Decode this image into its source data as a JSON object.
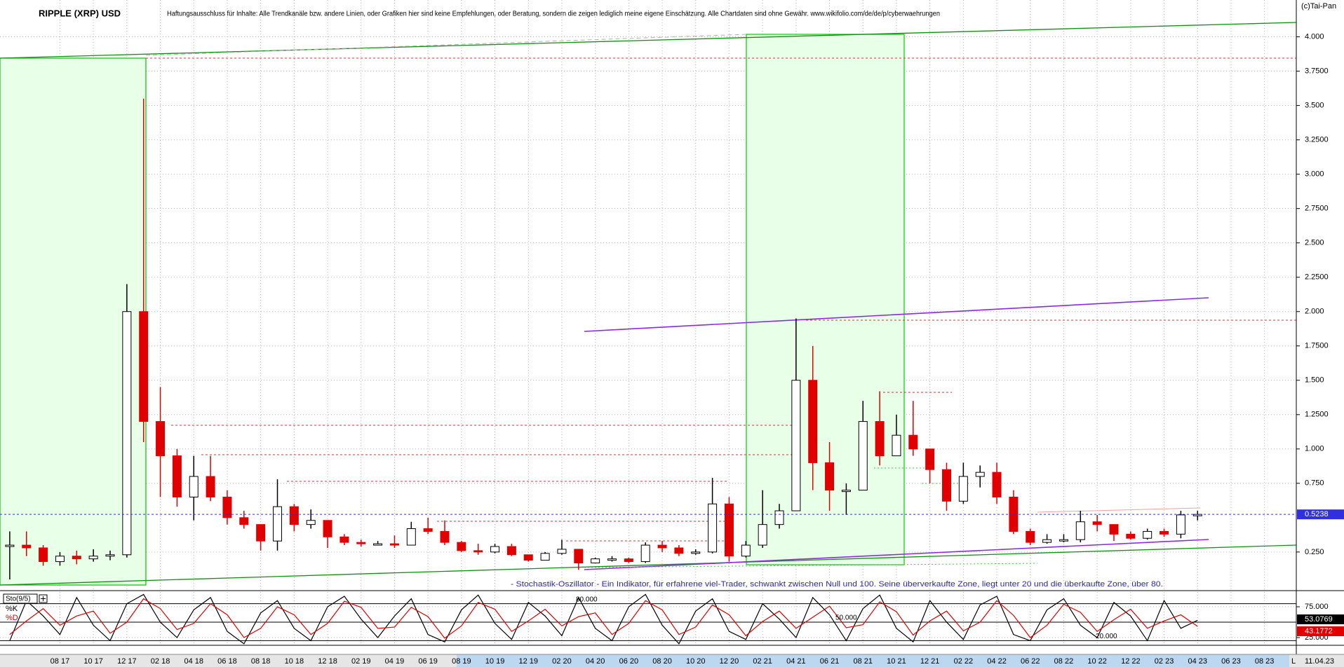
{
  "chart_data": [
    {
      "type": "candlestick",
      "title": "RIPPLE (XRP) USD",
      "subtitle": "Haftungsausschluss für Inhalte: Alle Trendkanäle bzw. andere Linien, oder Grafiken hier sind keine Empfehlungen, oder Beratung, sondern die zeigen lediglich meine eigene Einschätzung. Alle Chartdaten sind ohne Gewähr. www.wikifolio.com/de/de/p/cyberwaehrungen",
      "source": "(c)Tai-Pan",
      "date": "11.04.23",
      "scale_mode": "L",
      "categories": [
        null,
        null,
        null,
        "08 17",
        null,
        "10 17",
        null,
        "12 17",
        null,
        "02 18",
        null,
        "04 18",
        null,
        "06 18",
        null,
        "08 18",
        null,
        "10 18",
        null,
        "12 18",
        null,
        "02 19",
        null,
        "04 19",
        null,
        "06 19",
        null,
        "08 19",
        null,
        "10 19",
        null,
        "12 19",
        null,
        "02 20",
        null,
        "04 20",
        null,
        "06 20",
        null,
        "08 20",
        null,
        "10 20",
        null,
        "12 20",
        null,
        "02 21",
        null,
        "04 21",
        null,
        "06 21",
        null,
        "08 21",
        null,
        "10 21",
        null,
        "12 21",
        null,
        "02 22",
        null,
        "04 22",
        null,
        "06 22",
        null,
        "08 22",
        null,
        "10 22",
        null,
        "12 22",
        null,
        "02 23",
        null,
        "04 23",
        null,
        "06 23",
        null,
        "08 23",
        null,
        null
      ],
      "high": [
        0.4,
        0.4,
        0.3,
        0.25,
        0.26,
        0.27,
        0.26,
        2.2,
        3.55,
        1.45,
        1.0,
        0.95,
        0.95,
        0.7,
        0.55,
        0.45,
        0.78,
        0.6,
        0.56,
        0.48,
        0.38,
        0.34,
        0.33,
        0.37,
        0.47,
        0.5,
        0.48,
        0.33,
        0.31,
        0.31,
        0.31,
        0.23,
        0.25,
        0.34,
        0.27,
        0.21,
        0.22,
        0.21,
        0.32,
        0.33,
        0.3,
        0.27,
        0.79,
        0.65,
        0.33,
        0.7,
        0.6,
        1.95,
        1.75,
        1.05,
        0.75,
        1.35,
        1.42,
        1.25,
        1.35,
        1.0,
        0.9,
        0.9,
        0.88,
        0.9,
        0.7,
        0.42,
        0.38,
        0.38,
        0.55,
        0.52,
        0.45,
        0.4,
        0.42,
        0.42,
        0.55,
        0.55,
        null,
        null,
        null,
        null,
        null,
        null
      ],
      "low": [
        0.05,
        0.22,
        0.15,
        0.15,
        0.16,
        0.18,
        0.19,
        0.21,
        1.05,
        0.65,
        0.58,
        0.48,
        0.62,
        0.45,
        0.42,
        0.26,
        0.26,
        0.4,
        0.42,
        0.28,
        0.3,
        0.29,
        0.3,
        0.28,
        0.3,
        0.38,
        0.3,
        0.25,
        0.23,
        0.24,
        0.22,
        0.18,
        0.19,
        0.23,
        0.12,
        0.17,
        0.18,
        0.17,
        0.17,
        0.25,
        0.22,
        0.23,
        0.24,
        0.18,
        0.21,
        0.28,
        0.42,
        0.55,
        0.7,
        0.55,
        0.52,
        0.7,
        0.88,
        0.95,
        0.95,
        0.75,
        0.55,
        0.6,
        0.72,
        0.6,
        0.38,
        0.3,
        0.31,
        0.32,
        0.32,
        0.4,
        0.33,
        0.34,
        0.34,
        0.36,
        0.35,
        0.48,
        null,
        null,
        null,
        null,
        null,
        null
      ],
      "close": [
        0.3,
        0.28,
        0.18,
        0.22,
        0.2,
        0.22,
        0.23,
        2.0,
        1.2,
        0.95,
        0.65,
        0.8,
        0.65,
        0.5,
        0.45,
        0.33,
        0.58,
        0.45,
        0.48,
        0.36,
        0.32,
        0.31,
        0.31,
        0.3,
        0.42,
        0.4,
        0.32,
        0.26,
        0.25,
        0.29,
        0.23,
        0.19,
        0.24,
        0.27,
        0.17,
        0.2,
        0.2,
        0.18,
        0.3,
        0.28,
        0.24,
        0.25,
        0.6,
        0.22,
        0.3,
        0.45,
        0.55,
        1.5,
        0.9,
        0.7,
        0.7,
        1.2,
        0.95,
        1.1,
        1.0,
        0.85,
        0.62,
        0.8,
        0.83,
        0.65,
        0.4,
        0.32,
        0.34,
        0.34,
        0.47,
        0.45,
        0.38,
        0.35,
        0.4,
        0.38,
        0.52,
        0.5238,
        null,
        null,
        null,
        null,
        null,
        null
      ],
      "ylim": [
        -0.021,
        4.268
      ],
      "yticks": [
        {
          "value": 0.25,
          "label": "0.250"
        },
        {
          "value": 0.75,
          "label": "0.750"
        },
        {
          "value": 1.0,
          "label": "1.000"
        },
        {
          "value": 1.25,
          "label": "1.2500"
        },
        {
          "value": 1.5,
          "label": "1.500"
        },
        {
          "value": 1.75,
          "label": "1.7500"
        },
        {
          "value": 2.0,
          "label": "2.000"
        },
        {
          "value": 2.25,
          "label": "2.2500"
        },
        {
          "value": 2.5,
          "label": "2.500"
        },
        {
          "value": 2.75,
          "label": "2.7500"
        },
        {
          "value": 3.0,
          "label": "3.000"
        },
        {
          "value": 3.25,
          "label": "3.2500"
        },
        {
          "value": 3.5,
          "label": "3.500"
        },
        {
          "value": 3.75,
          "label": "3.7500"
        },
        {
          "value": 4.0,
          "label": "4.000"
        }
      ],
      "grid": true,
      "colors": {
        "up": "#000000",
        "down": "#e00000",
        "current": "#3030e0"
      }
    },
    {
      "type": "line",
      "title": "Sto(9/5)",
      "annotation": "- Stochastik-Oszillator - Ein Indikator, für erfahrene viel-Trader, schwankt zwischen Null und 100. Seine überverkaufte Zone, liegt unter 20 und die überkaufte Zone, über 80.",
      "series": [
        {
          "name": "%K",
          "color": "#000000",
          "values": [
            20,
            85,
            60,
            30,
            90,
            45,
            20,
            80,
            95,
            50,
            25,
            70,
            90,
            35,
            15,
            65,
            85,
            40,
            20,
            75,
            92,
            55,
            25,
            60,
            88,
            30,
            18,
            70,
            94,
            48,
            22,
            82,
            60,
            28,
            90,
            40,
            20,
            75,
            95,
            45,
            15,
            68,
            88,
            35,
            22,
            80,
            55,
            25,
            90,
            62,
            20,
            72,
            94,
            40,
            18,
            85,
            50,
            22,
            78,
            92,
            30,
            20,
            70,
            88,
            45,
            25,
            82,
            60,
            20,
            85,
            40,
            53.0769,
            null,
            null,
            null,
            null,
            null,
            null
          ]
        },
        {
          "name": "%D",
          "color": "#e00000",
          "values": [
            30,
            52,
            72,
            45,
            60,
            68,
            32,
            50,
            88,
            72,
            38,
            48,
            80,
            62,
            25,
            40,
            75,
            62,
            30,
            48,
            84,
            74,
            40,
            42,
            74,
            59,
            24,
            44,
            82,
            71,
            35,
            52,
            71,
            44,
            59,
            65,
            30,
            48,
            85,
            70,
            30,
            42,
            78,
            62,
            28,
            51,
            68,
            40,
            58,
            76,
            41,
            46,
            83,
            67,
            29,
            52,
            68,
            36,
            50,
            85,
            61,
            25,
            45,
            79,
            66,
            35,
            54,
            71,
            40,
            52,
            62,
            43.1772,
            null,
            null,
            null,
            null,
            null,
            null
          ]
        }
      ],
      "ylim": [
        14.8,
        98.9
      ],
      "yticks": [
        {
          "value": 75,
          "label": "75.000"
        },
        {
          "value": 25,
          "label": "25.000"
        }
      ],
      "levels": [
        {
          "value": 80,
          "label": "80.000"
        },
        {
          "value": 50,
          "label": "50.000"
        },
        {
          "value": 20,
          "label": "20.000"
        }
      ],
      "grid": true
    }
  ]
}
